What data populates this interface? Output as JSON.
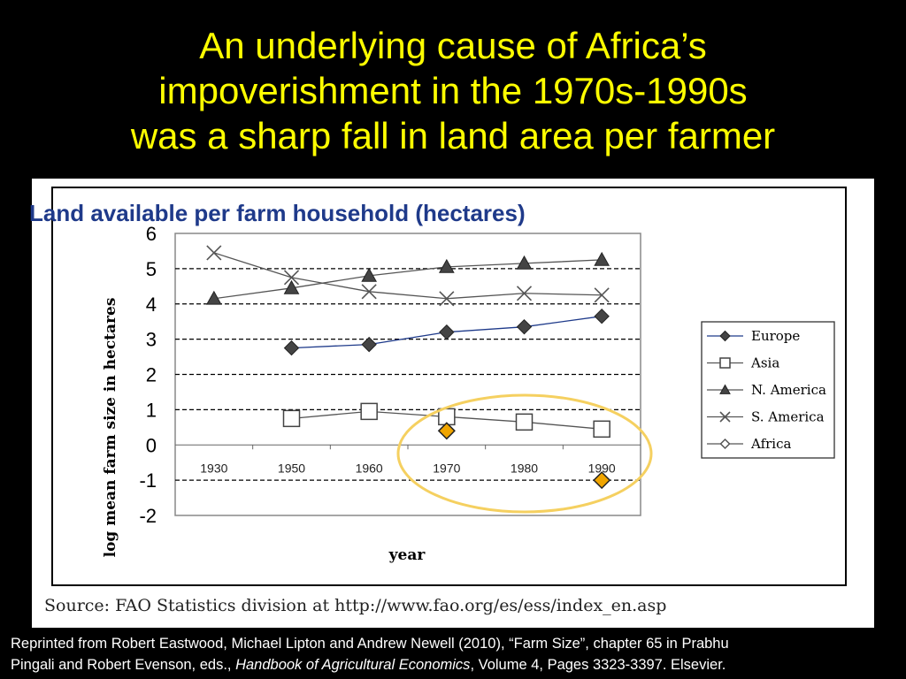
{
  "slide": {
    "title_lines": [
      "An underlying cause of Africa’s",
      "impoverishment in the 1970s-1990s",
      "was a sharp fall in land area per farmer"
    ],
    "title_color": "#ffff00",
    "background": "#000000",
    "source": "Source: FAO Statistics division at http://www.fao.org/es/ess/index_en.asp",
    "citation": {
      "part1": "Reprinted from Robert Eastwood, Michael Lipton and Andrew Newell (2010), “Farm Size”, chapter 65 in Prabhu",
      "part2": "Pingali and Robert Evenson, eds., ",
      "italic": "Handbook of Agricultural Economics",
      "part3": ", Volume 4, Pages 3323-3397. Elsevier."
    }
  },
  "chart_data": {
    "type": "line",
    "title": "Land available per farm household (hectares)",
    "title_color": "#1f3a8a",
    "xlabel": "year",
    "ylabel": "log mean farm size in hectares",
    "categories": [
      "1930",
      "1950",
      "1960",
      "1970",
      "1980",
      "1990"
    ],
    "ylim": [
      -2,
      6
    ],
    "yticks": [
      "6",
      "5",
      "4",
      "3",
      "2",
      "1",
      "0",
      "-1",
      "-2"
    ],
    "ytick_values": [
      6,
      5,
      4,
      3,
      2,
      1,
      0,
      -1,
      -2
    ],
    "dashed_grid_values": [
      5,
      4,
      3,
      2,
      1,
      -1
    ],
    "series": [
      {
        "name": "Europe",
        "marker": "diamond-filled",
        "color": "#1e3a8a",
        "values": [
          null,
          2.75,
          2.85,
          3.2,
          3.35,
          3.65
        ]
      },
      {
        "name": "Asia",
        "marker": "square-open",
        "color": "#555555",
        "values": [
          null,
          0.75,
          0.95,
          0.8,
          0.65,
          0.45
        ]
      },
      {
        "name": "N. America",
        "marker": "triangle-filled",
        "color": "#555555",
        "values": [
          4.15,
          4.45,
          4.8,
          5.05,
          5.15,
          5.25
        ]
      },
      {
        "name": "S. America",
        "marker": "x",
        "color": "#555555",
        "values": [
          5.45,
          4.75,
          4.35,
          4.15,
          4.3,
          4.25
        ]
      },
      {
        "name": "Africa",
        "marker": "diamond-open",
        "color": "#555555",
        "values": [
          null,
          null,
          null,
          0.4,
          null,
          -1.0
        ]
      }
    ],
    "highlight": {
      "marker_fill": "#f0a500",
      "ellipse_color": "#f5d060"
    },
    "legend_position": "right"
  }
}
